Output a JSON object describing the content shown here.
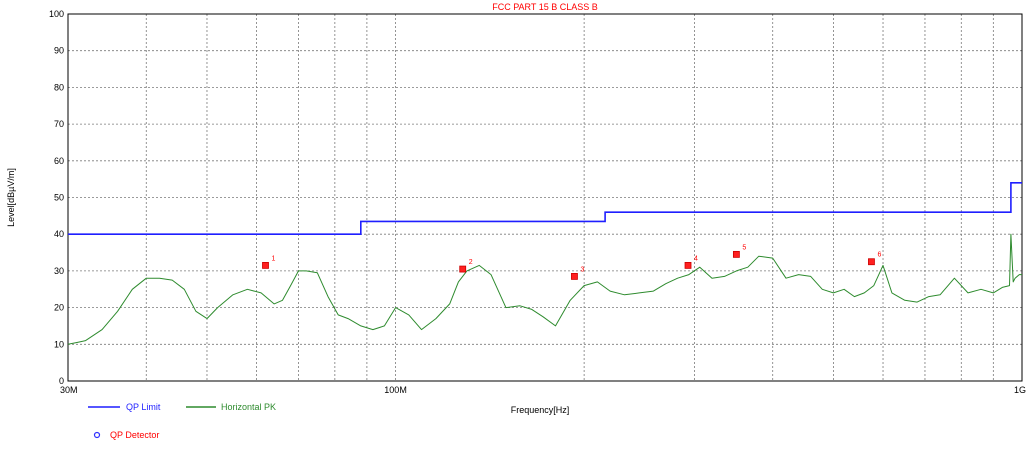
{
  "chart_data": {
    "type": "line",
    "title": "FCC PART 15 B CLASS B",
    "xlabel": "Frequency[Hz]",
    "ylabel": "Level[dBµV/m]",
    "xscale": "log",
    "xlim": [
      30000000,
      1000000000
    ],
    "ylim": [
      0,
      100
    ],
    "x_tick_labels": [
      "30M",
      "100M",
      "1G"
    ],
    "y_ticks": [
      0,
      10,
      20,
      30,
      40,
      50,
      60,
      70,
      80,
      90,
      100
    ],
    "grid": true,
    "colors": {
      "limit": "#1f1fff",
      "trace": "#2e8b2e",
      "markers": "#ff2020",
      "title": "#ff0000",
      "detector_legend": "#ff0000"
    },
    "series": [
      {
        "name": "QP Limit",
        "x": [
          30000000,
          88000000,
          88000000,
          216000000,
          216000000,
          960000000,
          960000000,
          1000000000
        ],
        "values": [
          40,
          40,
          43.5,
          43.5,
          46,
          46,
          54,
          54
        ]
      },
      {
        "name": "Horizontal PK",
        "x": [
          30000000,
          31000000,
          32000000,
          34000000,
          36000000,
          38000000,
          40000000,
          42000000,
          44000000,
          46000000,
          48000000,
          50000000,
          52000000,
          55000000,
          58000000,
          61000000,
          64000000,
          66000000,
          68000000,
          70000000,
          72000000,
          75000000,
          78000000,
          81000000,
          84000000,
          88000000,
          92000000,
          96000000,
          100000000,
          105000000,
          110000000,
          116000000,
          122000000,
          126000000,
          130000000,
          136000000,
          142000000,
          150000000,
          158000000,
          165000000,
          172000000,
          180000000,
          190000000,
          200000000,
          210000000,
          220000000,
          232000000,
          245000000,
          258000000,
          270000000,
          282000000,
          294000000,
          306000000,
          320000000,
          335000000,
          350000000,
          365000000,
          380000000,
          400000000,
          420000000,
          440000000,
          460000000,
          480000000,
          500000000,
          520000000,
          540000000,
          560000000,
          580000000,
          600000000,
          620000000,
          650000000,
          680000000,
          710000000,
          740000000,
          780000000,
          820000000,
          860000000,
          900000000,
          930000000,
          955000000,
          960000000,
          968000000,
          975000000,
          990000000,
          1000000000
        ],
        "values": [
          10,
          10.5,
          11,
          14,
          19,
          25,
          28,
          28,
          27.5,
          25,
          19,
          17,
          20,
          23.5,
          25,
          24,
          21,
          22,
          26,
          30,
          30,
          29.5,
          23,
          18,
          17,
          15,
          14,
          15,
          20,
          18,
          14,
          17,
          21,
          27,
          30,
          31.5,
          29,
          20,
          20.5,
          19.5,
          17.5,
          15,
          22,
          26,
          27,
          24.5,
          23.5,
          24,
          24.5,
          26.5,
          28,
          29,
          31,
          28,
          28.5,
          30,
          31,
          34,
          33.5,
          28,
          29,
          28.5,
          25,
          24,
          25,
          23,
          24,
          26,
          31.5,
          24,
          22,
          21.5,
          23,
          23.5,
          28,
          24,
          25,
          24,
          25.5,
          26,
          40,
          27,
          28,
          29,
          29
        ]
      }
    ],
    "markers": [
      {
        "label": "1",
        "x": 62000000,
        "y": 31.5
      },
      {
        "label": "2",
        "x": 128000000,
        "y": 30.5
      },
      {
        "label": "3",
        "x": 193000000,
        "y": 28.5
      },
      {
        "label": "4",
        "x": 293000000,
        "y": 31.5
      },
      {
        "label": "5",
        "x": 350000000,
        "y": 34.5
      },
      {
        "label": "6",
        "x": 575000000,
        "y": 32.5
      }
    ],
    "legend": [
      {
        "label": "QP Limit",
        "type": "line"
      },
      {
        "label": "Horizontal PK",
        "type": "line"
      },
      {
        "label": "QP Detector",
        "type": "marker"
      }
    ],
    "legend_position": "bottom-left"
  }
}
